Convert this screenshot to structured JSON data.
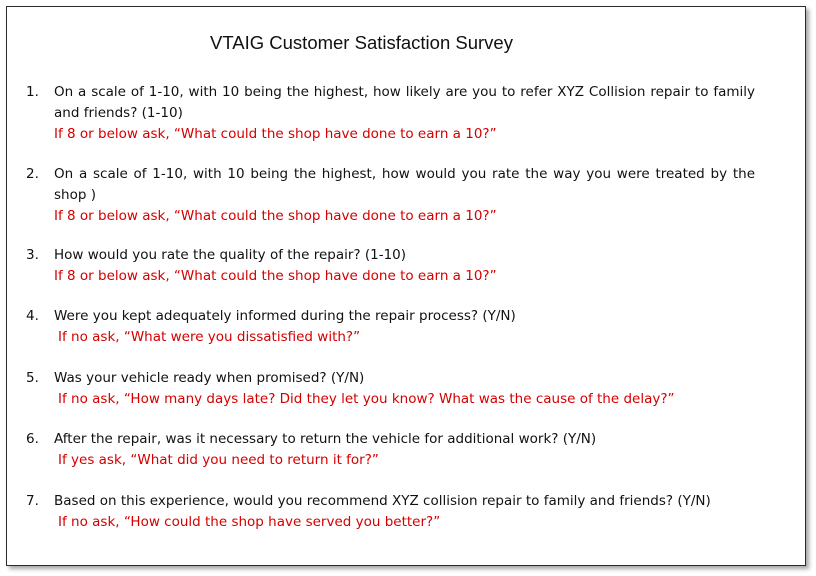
{
  "title": "VTAIG Customer Satisfaction Survey",
  "questions": [
    {
      "number": "1.",
      "text": "On a scale of 1-10, with 10 being the highest, how likely are you to refer XYZ Collision repair to family and friends? (1-10)",
      "followup": "If 8 or below ask, “What could the shop have done to earn a 10?”"
    },
    {
      "number": "2.",
      "text": "On a scale of 1-10, with 10 being the highest, how would you rate the way you were treated by the shop )",
      "followup": "If 8 or below ask, “What could the shop have done to earn a 10?”"
    },
    {
      "number": "3.",
      "text": "How would you rate the quality of the repair? (1-10)",
      "followup": "If 8 or below ask, “What could the shop have done to earn a 10?”"
    },
    {
      "number": "4.",
      "text": "Were you kept adequately informed during the repair process? (Y/N)",
      "followup": "If no ask, “What were you dissatisfied with?”"
    },
    {
      "number": "5.",
      "text": "Was your vehicle ready when promised? (Y/N)",
      "followup": "If no ask, “How many days late? Did they let you know? What was the cause of the delay?”"
    },
    {
      "number": "6.",
      "text": "After the repair, was it necessary to return the vehicle for additional work? (Y/N)",
      "followup": "If yes ask, “What did you need to return it for?”"
    },
    {
      "number": "7.",
      "text": "Based on this experience, would you recommend XYZ collision repair to family and friends? (Y/N)",
      "followup": "If no ask, “How could the shop have served you better?”"
    }
  ]
}
